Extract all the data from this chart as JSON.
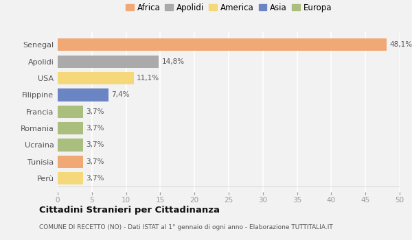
{
  "categories": [
    "Senegal",
    "Apolidi",
    "USA",
    "Filippine",
    "Francia",
    "Romania",
    "Ucraina",
    "Tunisia",
    "Perù"
  ],
  "values": [
    48.1,
    14.8,
    11.1,
    7.4,
    3.7,
    3.7,
    3.7,
    3.7,
    3.7
  ],
  "labels": [
    "48,1%",
    "14,8%",
    "11,1%",
    "7,4%",
    "3,7%",
    "3,7%",
    "3,7%",
    "3,7%",
    "3,7%"
  ],
  "colors": [
    "#F0A875",
    "#AAAAAA",
    "#F5D87A",
    "#6B84C4",
    "#AABF7E",
    "#AABF7E",
    "#AABF7E",
    "#F0A875",
    "#F5D87A"
  ],
  "legend": [
    {
      "label": "Africa",
      "color": "#F0A875"
    },
    {
      "label": "Apolidi",
      "color": "#AAAAAA"
    },
    {
      "label": "America",
      "color": "#F5D87A"
    },
    {
      "label": "Asia",
      "color": "#6B84C4"
    },
    {
      "label": "Europa",
      "color": "#AABF7E"
    }
  ],
  "xlim": [
    0,
    50
  ],
  "xticks": [
    0,
    5,
    10,
    15,
    20,
    25,
    30,
    35,
    40,
    45,
    50
  ],
  "title": "Cittadini Stranieri per Cittadinanza",
  "subtitle": "COMUNE DI RECETTO (NO) - Dati ISTAT al 1° gennaio di ogni anno - Elaborazione TUTTITALIA.IT",
  "background_color": "#F2F2F2",
  "grid_color": "#FFFFFF",
  "bar_height": 0.75
}
